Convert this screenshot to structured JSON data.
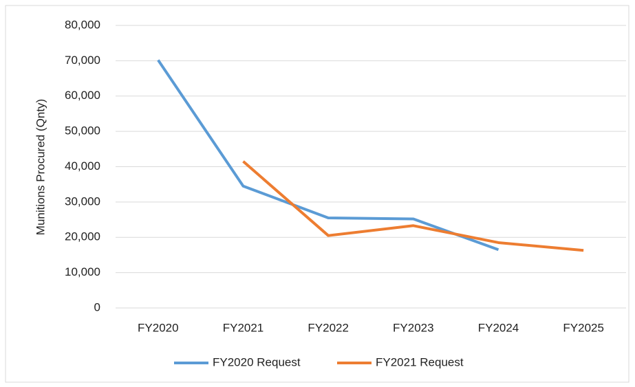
{
  "chart_data": {
    "type": "line",
    "y_label": "Munitions Procured (Qnty)",
    "categories": [
      "FY2020",
      "FY2021",
      "FY2022",
      "FY2023",
      "FY2024",
      "FY2025"
    ],
    "series": [
      {
        "name": "FY2020 Request",
        "color": "#5b9bd5",
        "values": [
          70200,
          34500,
          25500,
          25200,
          16500,
          null
        ]
      },
      {
        "name": "FY2021 Request",
        "color": "#ed7d31",
        "values": [
          null,
          41500,
          20500,
          23300,
          18500,
          16300
        ]
      }
    ],
    "ylim": [
      0,
      80000
    ],
    "yticks": [
      0,
      {
        "value": 10000,
        "label": "10,000"
      },
      {
        "value": 20000,
        "label": "20,000"
      },
      {
        "value": 30000,
        "label": "30,000"
      },
      {
        "value": 40000,
        "label": "40,000"
      },
      {
        "value": 50000,
        "label": "50,000"
      },
      {
        "value": 60000,
        "label": "60,000"
      },
      {
        "value": 70000,
        "label": "70,000"
      },
      {
        "value": 80000,
        "label": "80,000"
      }
    ],
    "grid": true,
    "legend": "bottom"
  }
}
